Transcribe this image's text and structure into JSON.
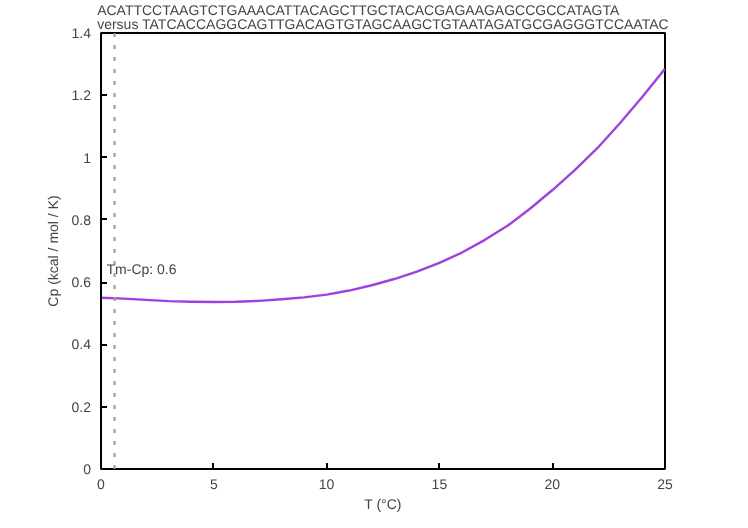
{
  "chart_data": {
    "type": "line",
    "title": "ACATTCCTAAGTCTGAAACATTACAGCTTGCTACACGAGAAGAGCCGCCATAGTA\nversus TATCACCAGGCAGTTGACAGTGTAGCAAGCTGTAATAGATGCGAGGGTCCAATAC",
    "xlabel": "T (°C)",
    "ylabel": "Cp (kcal / mol / K)",
    "x": [
      0,
      1,
      2,
      3,
      4,
      5,
      6,
      7,
      8,
      9,
      10,
      11,
      12,
      13,
      14,
      15,
      16,
      17,
      18,
      19,
      20,
      21,
      22,
      23,
      24,
      25
    ],
    "series": [
      {
        "color": "#a040e0",
        "values": [
          0.55,
          0.547,
          0.543,
          0.539,
          0.537,
          0.536,
          0.537,
          0.54,
          0.545,
          0.551,
          0.56,
          0.573,
          0.59,
          0.61,
          0.634,
          0.662,
          0.695,
          0.735,
          0.78,
          0.835,
          0.895,
          0.96,
          1.03,
          1.11,
          1.195,
          1.285
        ]
      }
    ],
    "xlim": [
      0,
      25
    ],
    "ylim": [
      0,
      1.4
    ],
    "xticks": [
      0,
      5,
      10,
      15,
      20,
      25
    ],
    "yticks": [
      0,
      0.2,
      0.4,
      0.6,
      0.8,
      1,
      1.2,
      1.4
    ],
    "ref_lines": [
      {
        "axis": "x",
        "value": 0.6,
        "label": "Tm-Cp: 0.6",
        "color": "#999999",
        "line_style": "dotted"
      }
    ],
    "grid": false
  }
}
